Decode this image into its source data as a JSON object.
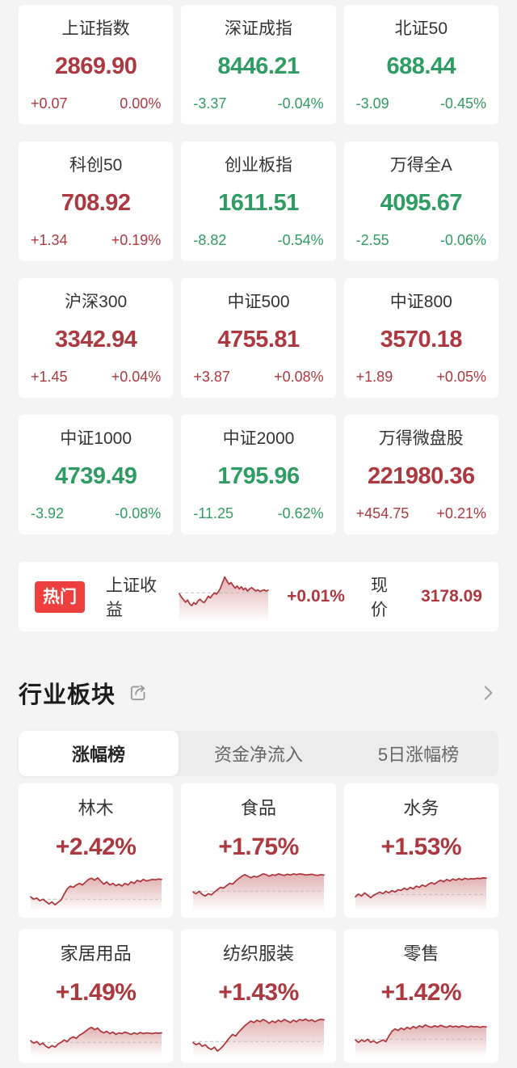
{
  "colors": {
    "up": "#ac3840",
    "down": "#2f9c63",
    "badge_red": "#ec3f3e",
    "spark_line": "#ae3338",
    "spark_fill": "#b73e42",
    "baseline_gray": "#bdbdbd"
  },
  "index_cards": [
    {
      "name": "上证指数",
      "value": "2869.90",
      "change": "+0.07",
      "pct": "0.00%",
      "dir": "up"
    },
    {
      "name": "深证成指",
      "value": "8446.21",
      "change": "-3.37",
      "pct": "-0.04%",
      "dir": "down"
    },
    {
      "name": "北证50",
      "value": "688.44",
      "change": "-3.09",
      "pct": "-0.45%",
      "dir": "down"
    },
    {
      "name": "科创50",
      "value": "708.92",
      "change": "+1.34",
      "pct": "+0.19%",
      "dir": "up"
    },
    {
      "name": "创业板指",
      "value": "1611.51",
      "change": "-8.82",
      "pct": "-0.54%",
      "dir": "down"
    },
    {
      "name": "万得全A",
      "value": "4095.67",
      "change": "-2.55",
      "pct": "-0.06%",
      "dir": "down"
    },
    {
      "name": "沪深300",
      "value": "3342.94",
      "change": "+1.45",
      "pct": "+0.04%",
      "dir": "up"
    },
    {
      "name": "中证500",
      "value": "4755.81",
      "change": "+3.87",
      "pct": "+0.08%",
      "dir": "up"
    },
    {
      "name": "中证800",
      "value": "3570.18",
      "change": "+1.89",
      "pct": "+0.05%",
      "dir": "up"
    },
    {
      "name": "中证1000",
      "value": "4739.49",
      "change": "-3.92",
      "pct": "-0.08%",
      "dir": "down"
    },
    {
      "name": "中证2000",
      "value": "1795.96",
      "change": "-11.25",
      "pct": "-0.62%",
      "dir": "down"
    },
    {
      "name": "万得微盘股",
      "value": "221980.36",
      "change": "+454.75",
      "pct": "+0.21%",
      "dir": "up"
    }
  ],
  "hot": {
    "badge": "热门",
    "name": "上证收益",
    "pct": "+0.01%",
    "dir": "up",
    "price_label": "现价",
    "price": "3178.09"
  },
  "sector_section": {
    "title": "行业板块",
    "tabs": [
      {
        "label": "涨幅榜",
        "active": true
      },
      {
        "label": "资金净流入",
        "active": false
      },
      {
        "label": "5日涨幅榜",
        "active": false
      }
    ]
  },
  "sectors": [
    {
      "name": "林木",
      "pct": "+2.42%",
      "dir": "up"
    },
    {
      "name": "食品",
      "pct": "+1.75%",
      "dir": "up"
    },
    {
      "name": "水务",
      "pct": "+1.53%",
      "dir": "up"
    },
    {
      "name": "家居用品",
      "pct": "+1.49%",
      "dir": "up"
    },
    {
      "name": "纺织服装",
      "pct": "+1.43%",
      "dir": "up"
    },
    {
      "name": "零售",
      "pct": "+1.42%",
      "dir": "up"
    }
  ],
  "chart_data": [
    {
      "type": "area",
      "name": "上证收益",
      "change_pct": "+0.01%",
      "current": 3178.09,
      "baseline": 0.6,
      "series": [
        0.58,
        0.5,
        0.44,
        0.38,
        0.43,
        0.34,
        0.3,
        0.37,
        0.33,
        0.41,
        0.45,
        0.4,
        0.37,
        0.44,
        0.52,
        0.48,
        0.55,
        0.6,
        0.57,
        0.63,
        0.72,
        0.85,
        0.97,
        0.88,
        0.8,
        0.84,
        0.77,
        0.71,
        0.76,
        0.69,
        0.74,
        0.67,
        0.71,
        0.64,
        0.69,
        0.72,
        0.68,
        0.64,
        0.67,
        0.63,
        0.65,
        0.67,
        0.64,
        0.66
      ]
    },
    {
      "type": "area",
      "name": "林木",
      "change_pct": "+2.42%",
      "baseline": 0.22,
      "series": [
        0.28,
        0.22,
        0.25,
        0.18,
        0.22,
        0.16,
        0.1,
        0.15,
        0.08,
        0.14,
        0.2,
        0.35,
        0.48,
        0.55,
        0.52,
        0.58,
        0.62,
        0.58,
        0.65,
        0.72,
        0.75,
        0.7,
        0.76,
        0.68,
        0.6,
        0.66,
        0.58,
        0.62,
        0.56,
        0.6,
        0.55,
        0.62,
        0.58,
        0.66,
        0.62,
        0.7,
        0.66,
        0.72,
        0.68,
        0.7,
        0.72,
        0.71,
        0.73,
        0.72
      ]
    },
    {
      "type": "area",
      "name": "食品",
      "change_pct": "+1.75%",
      "baseline": 0.42,
      "series": [
        0.4,
        0.36,
        0.42,
        0.34,
        0.3,
        0.36,
        0.33,
        0.4,
        0.46,
        0.52,
        0.5,
        0.56,
        0.62,
        0.6,
        0.68,
        0.74,
        0.8,
        0.84,
        0.8,
        0.76,
        0.8,
        0.78,
        0.82,
        0.86,
        0.84,
        0.8,
        0.84,
        0.82,
        0.86,
        0.84,
        0.82,
        0.85,
        0.83,
        0.86,
        0.84,
        0.86,
        0.85,
        0.83,
        0.84,
        0.85,
        0.83,
        0.82,
        0.84,
        0.83
      ]
    },
    {
      "type": "area",
      "name": "水务",
      "change_pct": "+1.53%",
      "baseline": 0.34,
      "series": [
        0.28,
        0.35,
        0.3,
        0.38,
        0.32,
        0.26,
        0.32,
        0.36,
        0.4,
        0.36,
        0.42,
        0.38,
        0.44,
        0.4,
        0.46,
        0.44,
        0.5,
        0.46,
        0.52,
        0.48,
        0.55,
        0.52,
        0.58,
        0.54,
        0.6,
        0.64,
        0.6,
        0.66,
        0.7,
        0.66,
        0.72,
        0.68,
        0.73,
        0.7,
        0.74,
        0.71,
        0.75,
        0.72,
        0.74,
        0.73,
        0.75,
        0.74,
        0.76,
        0.75
      ]
    },
    {
      "type": "area",
      "name": "家居用品",
      "change_pct": "+1.49%",
      "baseline": 0.28,
      "series": [
        0.32,
        0.26,
        0.3,
        0.22,
        0.26,
        0.18,
        0.14,
        0.2,
        0.16,
        0.24,
        0.28,
        0.34,
        0.3,
        0.38,
        0.42,
        0.38,
        0.46,
        0.5,
        0.56,
        0.62,
        0.66,
        0.6,
        0.64,
        0.56,
        0.52,
        0.56,
        0.5,
        0.54,
        0.48,
        0.52,
        0.5,
        0.54,
        0.51,
        0.48,
        0.52,
        0.49,
        0.53,
        0.5,
        0.52,
        0.51,
        0.5,
        0.52,
        0.51,
        0.52
      ]
    },
    {
      "type": "area",
      "name": "纺织服装",
      "change_pct": "+1.43%",
      "baseline": 0.3,
      "series": [
        0.28,
        0.22,
        0.26,
        0.18,
        0.22,
        0.14,
        0.1,
        0.16,
        0.06,
        0.12,
        0.2,
        0.3,
        0.4,
        0.48,
        0.44,
        0.54,
        0.62,
        0.7,
        0.76,
        0.82,
        0.78,
        0.84,
        0.8,
        0.86,
        0.82,
        0.76,
        0.82,
        0.78,
        0.84,
        0.8,
        0.86,
        0.82,
        0.78,
        0.84,
        0.8,
        0.86,
        0.83,
        0.87,
        0.82,
        0.85,
        0.8,
        0.84,
        0.86,
        0.85
      ]
    },
    {
      "type": "area",
      "name": "零售",
      "change_pct": "+1.42%",
      "baseline": 0.36,
      "series": [
        0.34,
        0.28,
        0.34,
        0.3,
        0.36,
        0.28,
        0.32,
        0.26,
        0.3,
        0.34,
        0.3,
        0.44,
        0.56,
        0.62,
        0.58,
        0.64,
        0.6,
        0.66,
        0.62,
        0.68,
        0.64,
        0.7,
        0.66,
        0.72,
        0.68,
        0.66,
        0.7,
        0.67,
        0.71,
        0.68,
        0.66,
        0.7,
        0.67,
        0.69,
        0.66,
        0.7,
        0.68,
        0.66,
        0.69,
        0.67,
        0.68,
        0.66,
        0.68,
        0.67
      ]
    }
  ]
}
